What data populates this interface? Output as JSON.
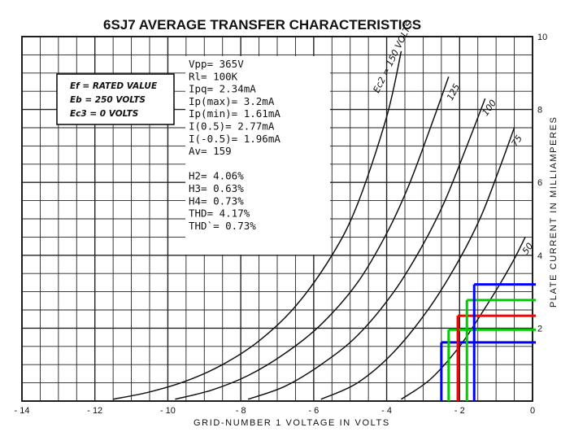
{
  "chart_data": {
    "type": "line",
    "title": "6SJ7 AVERAGE TRANSFER CHARACTERISTICS",
    "xlabel": "GRID-NUMBER 1 VOLTAGE IN VOLTS",
    "ylabel": "PLATE CURRENT IN MILLIAMPERES",
    "xlim": [
      -14,
      0
    ],
    "ylim": [
      0,
      10
    ],
    "x_ticks": [
      "-14",
      "-12",
      "-10",
      "-8",
      "-6",
      "-4",
      "-2",
      "0"
    ],
    "y_ticks": [
      "2",
      "4",
      "6",
      "8",
      "10"
    ],
    "grid": true,
    "conditions": [
      "Ef = RATED VALUE",
      "Eb = 250 VOLTS",
      "Ec3 = 0 VOLTS"
    ],
    "series": [
      {
        "name": "Ec2 = 150 VOLTS",
        "x": [
          -11.5,
          -10.5,
          -9.5,
          -8.5,
          -7.5,
          -6.5,
          -5.5,
          -4.8,
          -4.0,
          -3.6
        ],
        "y": [
          0.05,
          0.25,
          0.55,
          1.0,
          1.65,
          2.6,
          4.0,
          5.4,
          7.8,
          9.6
        ]
      },
      {
        "name": "125",
        "x": [
          -9.8,
          -8.8,
          -7.8,
          -6.8,
          -5.8,
          -4.8,
          -4.0,
          -3.4,
          -2.8,
          -2.3
        ],
        "y": [
          0.05,
          0.3,
          0.7,
          1.3,
          2.1,
          3.25,
          4.6,
          5.9,
          7.5,
          8.9
        ]
      },
      {
        "name": "100",
        "x": [
          -7.8,
          -6.8,
          -5.8,
          -4.8,
          -3.8,
          -3.0,
          -2.4,
          -1.8,
          -1.3
        ],
        "y": [
          0.05,
          0.4,
          1.0,
          1.8,
          3.0,
          4.3,
          5.5,
          7.0,
          8.3
        ]
      },
      {
        "name": "75",
        "x": [
          -5.8,
          -4.8,
          -3.8,
          -2.8,
          -2.0,
          -1.4,
          -0.9,
          -0.5
        ],
        "y": [
          0.05,
          0.5,
          1.35,
          2.6,
          3.9,
          5.1,
          6.4,
          7.5
        ]
      },
      {
        "name": "50",
        "x": [
          -3.6,
          -2.8,
          -2.0,
          -1.4,
          -0.9,
          -0.5,
          -0.2
        ],
        "y": [
          0.05,
          0.6,
          1.5,
          2.4,
          3.2,
          3.9,
          4.5
        ]
      }
    ],
    "overlay_lines": [
      {
        "color": "#0000ff",
        "grid_v": -2.5,
        "current_ma": 1.61
      },
      {
        "color": "#00cc00",
        "grid_v": -2.3,
        "current_ma": 1.96
      },
      {
        "color": "#ff0000",
        "grid_v": -2.05,
        "current_ma": 2.34
      },
      {
        "color": "#00cc00",
        "grid_v": -1.8,
        "current_ma": 2.77
      },
      {
        "color": "#0000ff",
        "grid_v": -1.6,
        "current_ma": 3.2
      }
    ],
    "results": [
      "Vpp= 365V",
      "Rl= 100K",
      "Ipq= 2.34mA",
      "Ip(max)= 3.2mA",
      "Ip(min)= 1.61mA",
      "I(0.5)= 2.77mA",
      "I(-0.5)= 1.96mA",
      "Av= 159",
      "",
      "H2= 4.06%",
      "H3= 0.63%",
      "H4= 0.73%",
      "THD= 4.17%",
      "THD`= 0.73%"
    ]
  }
}
